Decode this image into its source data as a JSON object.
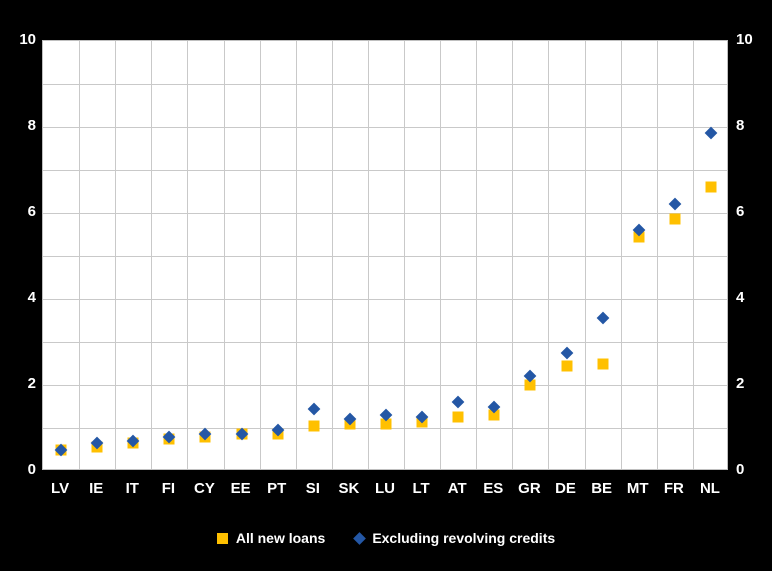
{
  "chart_data": {
    "type": "scatter",
    "title": "",
    "xlabel": "",
    "ylabel": "",
    "categories": [
      "LV",
      "IE",
      "IT",
      "FI",
      "CY",
      "EE",
      "PT",
      "SI",
      "SK",
      "LU",
      "LT",
      "AT",
      "ES",
      "GR",
      "DE",
      "BE",
      "MT",
      "FR",
      "NL"
    ],
    "series": [
      {
        "name": "All new loans",
        "marker": "square",
        "color": "#FFC000",
        "values": [
          0.5,
          0.55,
          0.65,
          0.75,
          0.8,
          0.85,
          0.85,
          1.05,
          1.1,
          1.1,
          1.15,
          1.25,
          1.3,
          2.0,
          2.45,
          2.5,
          5.45,
          5.85,
          6.6
        ]
      },
      {
        "name": "Excluding revolving credits",
        "marker": "diamond",
        "color": "#2457A5",
        "values": [
          0.5,
          0.65,
          0.7,
          0.8,
          0.85,
          0.85,
          0.95,
          1.45,
          1.2,
          1.3,
          1.25,
          1.6,
          1.5,
          2.2,
          2.75,
          3.55,
          5.6,
          6.2,
          7.85
        ]
      }
    ],
    "ylim": [
      0,
      10
    ],
    "yticks": [
      0,
      2,
      4,
      6,
      8,
      10
    ],
    "grid_minor_step": 1,
    "grid": true,
    "legend_position": "bottom",
    "colors": {
      "background": "#000000",
      "plot_background": "#FFFFFF",
      "gridline": "#C9C9C9",
      "tick_label": "#FFFFFF"
    }
  }
}
